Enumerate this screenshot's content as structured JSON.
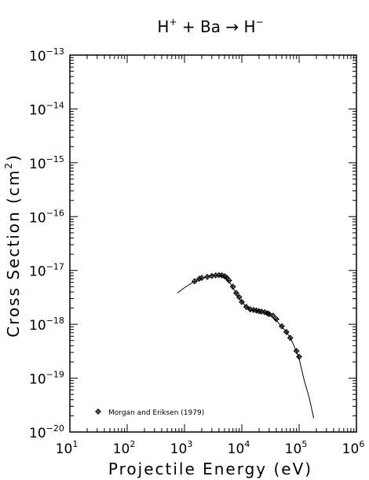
{
  "chart_data": {
    "type": "line",
    "title": {
      "base": "H",
      "base_sup": "+",
      "mid": " + Ba → H",
      "end_sup": "−"
    },
    "xlabel": "Projectile Energy (eV)",
    "ylabel": {
      "base": "Cross Section (cm",
      "sup": "2",
      "close": ")"
    },
    "xscale": "log",
    "yscale": "log",
    "xlim": [
      10,
      1000000
    ],
    "ylim": [
      1e-20,
      1e-13
    ],
    "x_ticks": [
      {
        "base": "10",
        "exp": "1",
        "value": 10
      },
      {
        "base": "10",
        "exp": "2",
        "value": 100
      },
      {
        "base": "10",
        "exp": "3",
        "value": 1000
      },
      {
        "base": "10",
        "exp": "4",
        "value": 10000
      },
      {
        "base": "10",
        "exp": "5",
        "value": 100000
      },
      {
        "base": "10",
        "exp": "6",
        "value": 1000000
      }
    ],
    "y_ticks": [
      {
        "base": "10",
        "exp": "−20",
        "value": 1e-20
      },
      {
        "base": "10",
        "exp": "−19",
        "value": 1e-19
      },
      {
        "base": "10",
        "exp": "−18",
        "value": 1e-18
      },
      {
        "base": "10",
        "exp": "−17",
        "value": 1e-17
      },
      {
        "base": "10",
        "exp": "−16",
        "value": 1e-16
      },
      {
        "base": "10",
        "exp": "−15",
        "value": 1e-15
      },
      {
        "base": "10",
        "exp": "−14",
        "value": 1e-14
      },
      {
        "base": "10",
        "exp": "−13",
        "value": 1e-13
      }
    ],
    "grid": false,
    "legend": {
      "position": "bottom-left",
      "label": "Morgan and Eriksen (1979)",
      "marker": "diamond-cross"
    },
    "fit_curve": {
      "x": [
        750,
        1000,
        1500,
        2000,
        3000,
        4000,
        5000,
        6000,
        7000,
        8000,
        10000,
        12000,
        15000,
        20000,
        25000,
        30000,
        40000,
        50000,
        60000,
        70000,
        80000,
        100000,
        120000,
        150000,
        180000
      ],
      "y": [
        3.8e-18,
        4.8e-18,
        6.3e-18,
        7.2e-18,
        8e-18,
        8.2e-18,
        7.5e-18,
        6.2e-18,
        4.8e-18,
        3.7e-18,
        2.6e-18,
        2.1e-18,
        1.8e-18,
        1.75e-18,
        1.65e-18,
        1.5e-18,
        1.18e-18,
        9e-19,
        7.2e-19,
        5.6e-19,
        4.2e-19,
        2.3e-19,
        1e-19,
        4.3e-20,
        1.8e-20
      ]
    },
    "series": [
      {
        "name": "Morgan and Eriksen (1979)",
        "marker": "diamond-cross",
        "x": [
          1500,
          1800,
          2000,
          2500,
          3000,
          3500,
          4000,
          4500,
          5000,
          5500,
          6000,
          7000,
          8000,
          9000,
          10000,
          12000,
          14000,
          16000,
          18000,
          20000,
          22000,
          25000,
          28000,
          30000,
          35000,
          40000,
          50000,
          60000,
          70000,
          90000,
          100000
        ],
        "y": [
          6.3e-18,
          7e-18,
          7.3e-18,
          7.6e-18,
          7.9e-18,
          8.1e-18,
          8.2e-18,
          8.1e-18,
          7.8e-18,
          7.3e-18,
          6.5e-18,
          5e-18,
          3.8e-18,
          3.2e-18,
          2.6e-18,
          2.1e-18,
          1.9e-18,
          1.85e-18,
          1.8e-18,
          1.75e-18,
          1.72e-18,
          1.68e-18,
          1.6e-18,
          1.55e-18,
          1.45e-18,
          1.25e-18,
          9.2e-19,
          7.2e-19,
          5.6e-19,
          3.2e-19,
          2.5e-19
        ]
      }
    ]
  }
}
